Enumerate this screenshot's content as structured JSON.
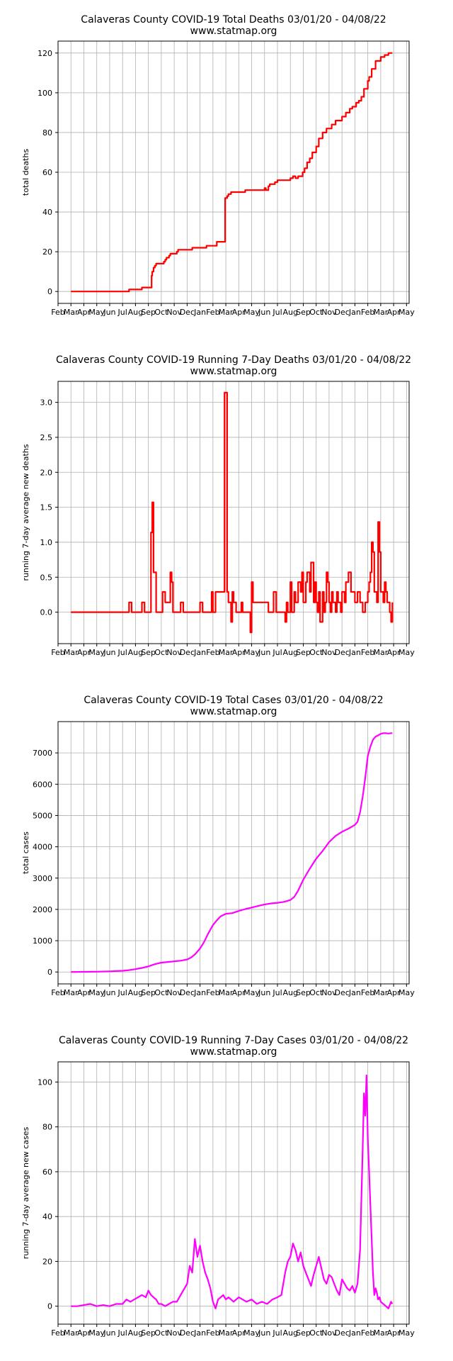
{
  "page": {
    "background": "#ffffff"
  },
  "chart_data": [
    {
      "id": "total-deaths",
      "type": "line",
      "step": true,
      "title": "Calaveras County COVID-19 Total Deaths 03/01/20 - 04/08/22",
      "subtitle": "www.statmap.org",
      "xlabel": "",
      "ylabel": "total deaths",
      "color": "#ff0000",
      "grid": true,
      "xlim": [
        0,
        27.2
      ],
      "ylim": [
        -6,
        126
      ],
      "yticks": [
        0,
        20,
        40,
        60,
        80,
        100,
        120
      ],
      "xtick_labels": [
        "Feb",
        "Mar",
        "Apr",
        "May",
        "Jun",
        "Jul",
        "Aug",
        "Sep",
        "Oct",
        "Nov",
        "Dec",
        "Jan",
        "Feb",
        "Mar",
        "Apr",
        "May",
        "Jun",
        "Jul",
        "Aug",
        "Sep",
        "Oct",
        "Nov",
        "Dec",
        "Jan",
        "Feb",
        "Mar",
        "Apr",
        "May"
      ],
      "series": [
        {
          "x": [
            1.0,
            5.5,
            5.5,
            6.5,
            6.5,
            7.2,
            7.25,
            7.3,
            7.4,
            7.5,
            7.6,
            8.1,
            8.2,
            8.3,
            8.4,
            8.6,
            8.7,
            9.2,
            9.3,
            10.3,
            10.4,
            11.4,
            11.5,
            12.2,
            12.3,
            12.85,
            12.95,
            13.1,
            13.2,
            13.4,
            13.5,
            14.4,
            14.5,
            14.6,
            15.0,
            15.2,
            15.4,
            16.0,
            16.1,
            16.3,
            16.4,
            16.8,
            17.0,
            17.3,
            17.6,
            17.8,
            18.0,
            18.2,
            18.4,
            18.6,
            18.8,
            18.95,
            19.1,
            19.3,
            19.5,
            19.7,
            20.0,
            20.2,
            20.5,
            20.8,
            21.2,
            21.5,
            22.0,
            22.3,
            22.6,
            22.8,
            23.0,
            23.1,
            23.3,
            23.5,
            23.7,
            24.0,
            24.1,
            24.3,
            24.6,
            25.0,
            25.3,
            25.6,
            25.9
          ],
          "y": [
            0,
            0,
            1,
            1,
            2,
            2,
            8,
            10,
            12,
            13,
            14,
            14,
            15,
            16,
            17,
            18,
            19,
            20,
            21,
            21,
            22,
            22,
            23,
            23,
            25,
            25,
            47,
            48,
            49,
            50,
            50,
            50,
            51,
            51,
            51,
            51,
            51,
            52,
            51,
            53,
            54,
            55,
            56,
            56,
            56,
            56,
            57,
            58,
            57,
            58,
            58,
            60,
            62,
            65,
            67,
            70,
            73,
            77,
            80,
            82,
            84,
            86,
            88,
            90,
            92,
            93,
            93,
            95,
            96,
            98,
            102,
            106,
            108,
            112,
            116,
            118,
            119,
            120,
            120
          ]
        }
      ]
    },
    {
      "id": "running-7day-deaths",
      "type": "line",
      "step": true,
      "title": "Calaveras County COVID-19 Running 7-Day Deaths 03/01/20 - 04/08/22",
      "subtitle": "www.statmap.org",
      "xlabel": "",
      "ylabel": "running 7-day average new deaths",
      "color": "#ff0000",
      "grid": true,
      "xlim": [
        0,
        27.2
      ],
      "ylim": [
        -0.45,
        3.3
      ],
      "yticks": [
        0.0,
        0.5,
        1.0,
        1.5,
        2.0,
        2.5,
        3.0
      ],
      "ytick_format": 1,
      "xtick_labels": [
        "Feb",
        "Mar",
        "Apr",
        "May",
        "Jun",
        "Jul",
        "Aug",
        "Sep",
        "Oct",
        "Nov",
        "Dec",
        "Jan",
        "Feb",
        "Mar",
        "Apr",
        "May",
        "Jun",
        "Jul",
        "Aug",
        "Sep",
        "Oct",
        "Nov",
        "Dec",
        "Jan",
        "Feb",
        "Mar",
        "Apr",
        "May"
      ],
      "series": [
        {
          "x": [
            1.0,
            5.4,
            5.5,
            5.7,
            6.4,
            6.5,
            6.7,
            7.1,
            7.2,
            7.3,
            7.4,
            7.6,
            7.9,
            8.1,
            8.3,
            8.7,
            8.8,
            8.9,
            9.0,
            9.5,
            9.7,
            10.9,
            11.0,
            11.2,
            11.8,
            11.9,
            12.0,
            12.2,
            12.9,
            13.1,
            13.2,
            13.4,
            13.5,
            13.6,
            13.8,
            14.0,
            14.2,
            14.3,
            14.9,
            15.0,
            15.1,
            15.2,
            15.3,
            15.8,
            16.3,
            16.6,
            16.7,
            16.9,
            17.3,
            17.6,
            17.7,
            17.8,
            18.0,
            18.1,
            18.3,
            18.4,
            18.6,
            18.8,
            18.9,
            19.0,
            19.2,
            19.3,
            19.5,
            19.6,
            19.8,
            19.9,
            20.0,
            20.1,
            20.2,
            20.3,
            20.5,
            20.6,
            20.7,
            20.8,
            20.9,
            21.0,
            21.1,
            21.2,
            21.3,
            21.5,
            21.6,
            21.7,
            21.9,
            22.0,
            22.2,
            22.3,
            22.5,
            22.7,
            23.0,
            23.2,
            23.4,
            23.6,
            23.8,
            24.0,
            24.1,
            24.2,
            24.3,
            24.4,
            24.5,
            24.7,
            24.8,
            24.9,
            25.0,
            25.2,
            25.3,
            25.4,
            25.5,
            25.7,
            25.8,
            25.9
          ],
          "y": [
            0,
            0,
            0.14,
            0,
            0,
            0.14,
            0,
            0,
            1.14,
            1.57,
            0.57,
            0,
            0,
            0.29,
            0.14,
            0.57,
            0.43,
            0,
            0,
            0.14,
            0,
            0,
            0.14,
            0,
            0,
            0.29,
            0,
            0.29,
            3.14,
            0.29,
            0.14,
            -0.14,
            0.29,
            0.14,
            0,
            0,
            0.14,
            0,
            -0.29,
            0.43,
            0.14,
            0.14,
            0.14,
            0.14,
            0,
            0,
            0.29,
            0,
            0,
            -0.14,
            0.14,
            0,
            0.43,
            0,
            0.29,
            0.14,
            0.43,
            0.29,
            0.57,
            0.14,
            0.43,
            0.57,
            0.29,
            0.71,
            0.14,
            0.43,
            0.14,
            0,
            0.29,
            -0.14,
            0.29,
            0,
            0.14,
            0.57,
            0.43,
            0.14,
            0,
            0.29,
            0.14,
            0,
            0.29,
            0.14,
            0,
            0.29,
            0.14,
            0.43,
            0.57,
            0.29,
            0.14,
            0.29,
            0.14,
            0,
            0.14,
            0.29,
            0.43,
            0.57,
            1.0,
            0.86,
            0.29,
            0.14,
            1.29,
            0.86,
            0.29,
            0.14,
            0.43,
            0.29,
            0.14,
            0,
            -0.14,
            0.14
          ]
        }
      ]
    },
    {
      "id": "total-cases",
      "type": "line",
      "step": false,
      "title": "Calaveras County COVID-19 Total Cases 03/01/20 - 04/08/22",
      "subtitle": "www.statmap.org",
      "xlabel": "",
      "ylabel": "total cases",
      "color": "#ff00ff",
      "grid": true,
      "xlim": [
        0,
        27.2
      ],
      "ylim": [
        -380,
        8000
      ],
      "yticks": [
        0,
        1000,
        2000,
        3000,
        4000,
        5000,
        6000,
        7000
      ],
      "xtick_labels": [
        "Feb",
        "Mar",
        "Apr",
        "May",
        "Jun",
        "Jul",
        "Aug",
        "Sep",
        "Oct",
        "Nov",
        "Dec",
        "Jan",
        "Feb",
        "Mar",
        "Apr",
        "May",
        "Jun",
        "Jul",
        "Aug",
        "Sep",
        "Oct",
        "Nov",
        "Dec",
        "Jan",
        "Feb",
        "Mar",
        "Apr",
        "May"
      ],
      "series": [
        {
          "x": [
            1,
            2,
            3,
            4,
            5,
            5.5,
            6,
            6.5,
            7,
            7.5,
            8,
            8.5,
            9,
            9.5,
            10,
            10.3,
            10.6,
            11,
            11.3,
            11.6,
            12,
            12.3,
            12.6,
            13,
            13.5,
            14,
            14.5,
            15,
            15.5,
            16,
            16.5,
            17,
            17.5,
            18,
            18.3,
            18.6,
            19,
            19.5,
            20,
            20.5,
            21,
            21.5,
            22,
            22.5,
            23,
            23.2,
            23.4,
            23.6,
            23.8,
            24.0,
            24.2,
            24.4,
            24.6,
            24.8,
            25.0,
            25.2,
            25.4,
            25.6,
            25.8,
            25.9
          ],
          "y": [
            0,
            5,
            10,
            20,
            40,
            60,
            90,
            130,
            180,
            250,
            300,
            320,
            340,
            360,
            400,
            460,
            560,
            750,
            950,
            1200,
            1500,
            1650,
            1780,
            1860,
            1880,
            1950,
            2010,
            2060,
            2110,
            2160,
            2190,
            2210,
            2240,
            2300,
            2400,
            2600,
            2950,
            3300,
            3620,
            3870,
            4150,
            4350,
            4480,
            4580,
            4700,
            4800,
            5100,
            5600,
            6200,
            6900,
            7200,
            7420,
            7520,
            7560,
            7610,
            7630,
            7630,
            7620,
            7630,
            7630
          ]
        }
      ]
    },
    {
      "id": "running-7day-cases",
      "type": "line",
      "step": false,
      "title": "Calaveras County COVID-19 Running 7-Day Cases 03/01/20 - 04/08/22",
      "subtitle": "www.statmap.org",
      "xlabel": "",
      "ylabel": "running 7-day average new cases",
      "color": "#ff00ff",
      "grid": true,
      "xlim": [
        0,
        27.2
      ],
      "ylim": [
        -8,
        109
      ],
      "yticks": [
        0,
        20,
        40,
        60,
        80,
        100
      ],
      "xtick_labels": [
        "Feb",
        "Mar",
        "Apr",
        "May",
        "Jun",
        "Jul",
        "Aug",
        "Sep",
        "Oct",
        "Nov",
        "Dec",
        "Jan",
        "Feb",
        "Mar",
        "Apr",
        "May",
        "Jun",
        "Jul",
        "Aug",
        "Sep",
        "Oct",
        "Nov",
        "Dec",
        "Jan",
        "Feb",
        "Mar",
        "Apr",
        "May"
      ],
      "series": [
        {
          "x": [
            1,
            1.5,
            2,
            2.5,
            3,
            3.5,
            4,
            4.5,
            5,
            5.3,
            5.6,
            5.9,
            6.2,
            6.5,
            6.8,
            7.0,
            7.2,
            7.4,
            7.6,
            7.8,
            8.0,
            8.3,
            8.6,
            8.9,
            9.2,
            9.5,
            9.8,
            10.0,
            10.2,
            10.4,
            10.6,
            10.8,
            11.0,
            11.2,
            11.4,
            11.6,
            11.8,
            12.0,
            12.2,
            12.4,
            12.6,
            12.8,
            13.0,
            13.2,
            13.4,
            13.6,
            13.8,
            14.0,
            14.3,
            14.6,
            15.0,
            15.4,
            15.8,
            16.2,
            16.6,
            17.0,
            17.3,
            17.6,
            17.8,
            18.0,
            18.2,
            18.4,
            18.6,
            18.8,
            19.0,
            19.2,
            19.4,
            19.6,
            19.8,
            20.0,
            20.2,
            20.4,
            20.6,
            20.8,
            21.0,
            21.2,
            21.4,
            21.6,
            21.8,
            22.0,
            22.2,
            22.4,
            22.6,
            22.8,
            23.0,
            23.2,
            23.4,
            23.5,
            23.6,
            23.7,
            23.8,
            23.9,
            24.0,
            24.1,
            24.2,
            24.3,
            24.4,
            24.5,
            24.6,
            24.7,
            24.8,
            24.9,
            25.0,
            25.2,
            25.4,
            25.6,
            25.8,
            25.9
          ],
          "y": [
            0,
            0,
            0.5,
            1,
            0,
            0.5,
            0,
            1,
            1,
            3,
            2,
            3,
            4,
            5,
            4,
            7,
            5,
            4,
            3,
            1,
            1,
            0,
            1,
            2,
            2,
            5,
            8,
            10,
            18,
            15,
            30,
            22,
            27,
            20,
            15,
            12,
            8,
            2,
            -1,
            3,
            4,
            5,
            3,
            4,
            3,
            2,
            3,
            4,
            3,
            2,
            3,
            1,
            2,
            1,
            3,
            4,
            5,
            15,
            20,
            22,
            28,
            25,
            20,
            24,
            18,
            15,
            12,
            9,
            14,
            18,
            22,
            17,
            12,
            10,
            14,
            13,
            10,
            7,
            5,
            12,
            10,
            8,
            7,
            9,
            6,
            10,
            25,
            47,
            70,
            95,
            85,
            103,
            75,
            60,
            45,
            30,
            15,
            5,
            8,
            6,
            3,
            4,
            2,
            1,
            0,
            -1,
            2,
            1
          ]
        }
      ]
    }
  ]
}
